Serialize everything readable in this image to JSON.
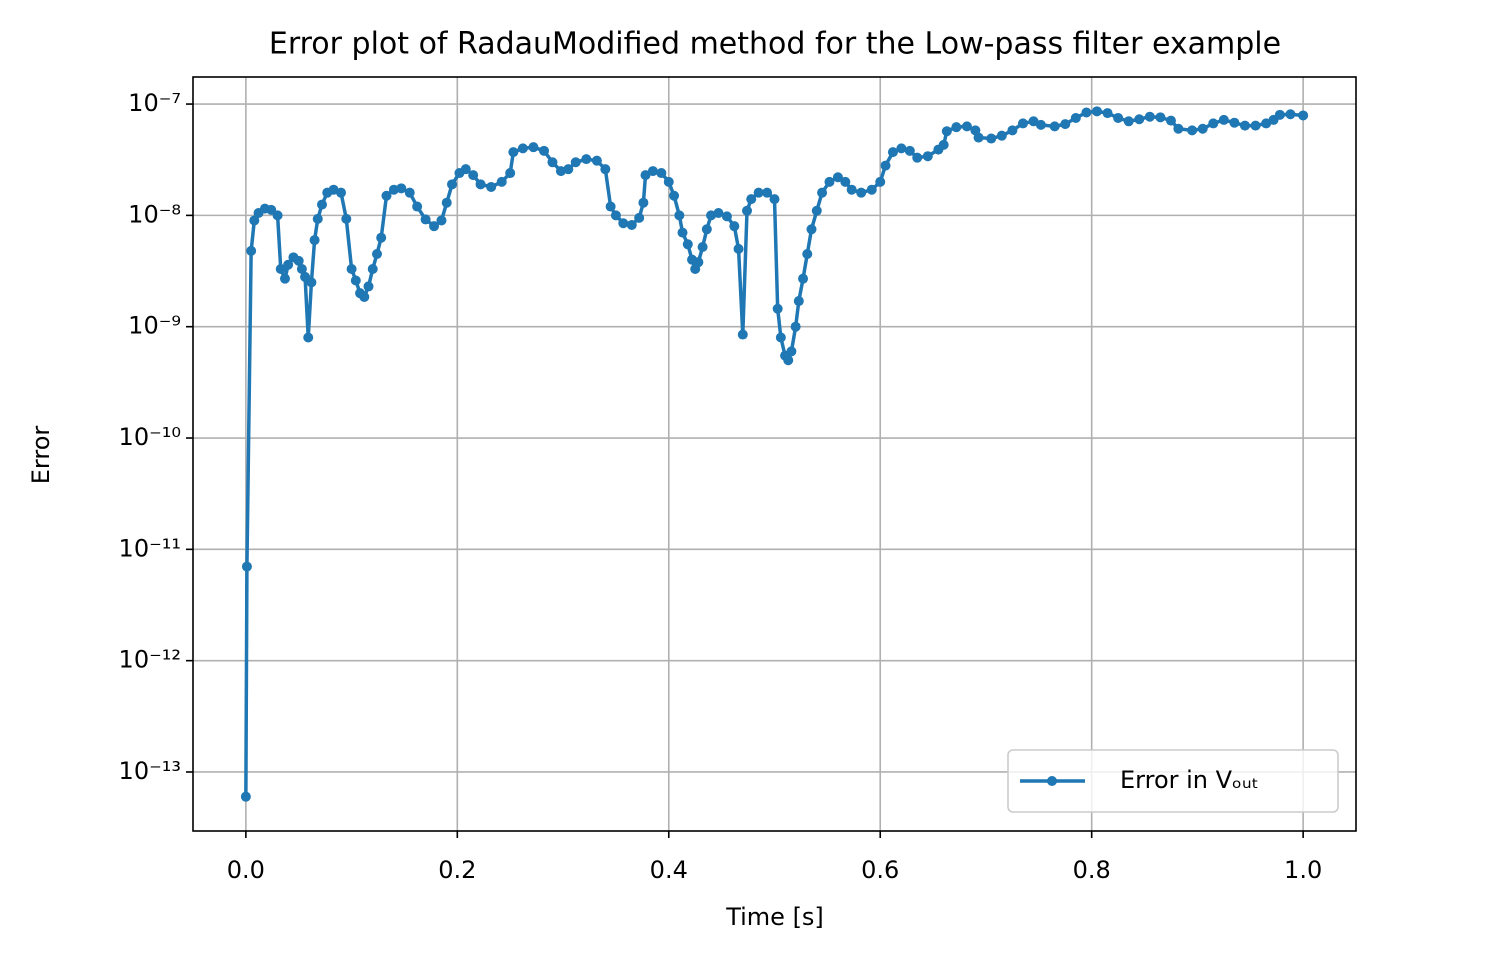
{
  "chart_data": {
    "type": "line",
    "title": "Error plot of RadauModified method for the Low-pass filter example",
    "xlabel": "Time [s]",
    "ylabel": "Error",
    "yscale": "log",
    "grid": true,
    "legend": "lower right",
    "xlim": [
      -0.05,
      1.05
    ],
    "ylim": [
      2.95e-14,
      1.75e-07
    ],
    "xticks": [
      {
        "value": 0,
        "label": "0.0"
      },
      0.2,
      0.4,
      0.6,
      0.8,
      {
        "value": 1,
        "label": "1.0"
      }
    ],
    "yticks": [
      {
        "value": 1e-13,
        "label": "10⁻¹³"
      },
      {
        "value": 1e-12,
        "label": "10⁻¹²"
      },
      {
        "value": 1e-11,
        "label": "10⁻¹¹"
      },
      {
        "value": 1e-10,
        "label": "10⁻¹⁰"
      },
      {
        "value": 1e-09,
        "label": "10⁻⁹"
      },
      {
        "value": 1e-08,
        "label": "10⁻⁸"
      },
      {
        "value": 1e-07,
        "label": "10⁻⁷"
      }
    ],
    "x": [
      0,
      0.001,
      0.005,
      0.008,
      0.012,
      0.018,
      0.024,
      0.03,
      0.033,
      0.037,
      0.04,
      0.045,
      0.05,
      0.053,
      0.056,
      0.059,
      0.062,
      0.065,
      0.068,
      0.072,
      0.077,
      0.083,
      0.09,
      0.095,
      0.1,
      0.104,
      0.108,
      0.112,
      0.116,
      0.12,
      0.124,
      0.128,
      0.133,
      0.14,
      0.147,
      0.155,
      0.162,
      0.17,
      0.178,
      0.185,
      0.19,
      0.195,
      0.202,
      0.208,
      0.215,
      0.222,
      0.232,
      0.242,
      0.25,
      0.253,
      0.262,
      0.272,
      0.282,
      0.29,
      0.298,
      0.305,
      0.312,
      0.322,
      0.332,
      0.34,
      0.345,
      0.35,
      0.357,
      0.365,
      0.372,
      0.376,
      0.378,
      0.385,
      0.393,
      0.4,
      0.405,
      0.41,
      0.413,
      0.418,
      0.422,
      0.425,
      0.428,
      0.432,
      0.436,
      0.44,
      0.447,
      0.455,
      0.462,
      0.466,
      0.47,
      0.474,
      0.478,
      0.485,
      0.493,
      0.5,
      0.503,
      0.506,
      0.51,
      0.513,
      0.516,
      0.52,
      0.523,
      0.527,
      0.531,
      0.535,
      0.54,
      0.545,
      0.552,
      0.56,
      0.567,
      0.573,
      0.582,
      0.592,
      0.6,
      0.605,
      0.612,
      0.62,
      0.628,
      0.635,
      0.645,
      0.655,
      0.66,
      0.663,
      0.672,
      0.682,
      0.69,
      0.693,
      0.705,
      0.715,
      0.725,
      0.735,
      0.745,
      0.752,
      0.765,
      0.775,
      0.785,
      0.795,
      0.805,
      0.815,
      0.825,
      0.835,
      0.845,
      0.855,
      0.865,
      0.875,
      0.882,
      0.895,
      0.905,
      0.915,
      0.925,
      0.935,
      0.945,
      0.955,
      0.965,
      0.972,
      0.978,
      0.988,
      1.0
    ],
    "series": [
      {
        "name": "Error in Vₒᵤₜ",
        "color": "#1f77b4",
        "values": [
          6e-14,
          7e-12,
          4.8e-09,
          9e-09,
          1.05e-08,
          1.15e-08,
          1.12e-08,
          1e-08,
          3.3e-09,
          2.7e-09,
          3.6e-09,
          4.2e-09,
          3.9e-09,
          3.3e-09,
          2.8e-09,
          8e-10,
          2.5e-09,
          6e-09,
          9.3e-09,
          1.25e-08,
          1.6e-08,
          1.7e-08,
          1.6e-08,
          9.3e-09,
          3.3e-09,
          2.6e-09,
          2e-09,
          1.85e-09,
          2.3e-09,
          3.3e-09,
          4.5e-09,
          6.3e-09,
          1.5e-08,
          1.7e-08,
          1.75e-08,
          1.6e-08,
          1.2e-08,
          9.2e-09,
          8e-09,
          9e-09,
          1.3e-08,
          1.9e-08,
          2.4e-08,
          2.6e-08,
          2.3e-08,
          1.9e-08,
          1.8e-08,
          2e-08,
          2.4e-08,
          3.7e-08,
          4e-08,
          4.1e-08,
          3.8e-08,
          3e-08,
          2.5e-08,
          2.6e-08,
          3e-08,
          3.2e-08,
          3.1e-08,
          2.6e-08,
          1.2e-08,
          1e-08,
          8.5e-09,
          8.2e-09,
          9.5e-09,
          1.3e-08,
          2.3e-08,
          2.5e-08,
          2.4e-08,
          2e-08,
          1.5e-08,
          1e-08,
          7e-09,
          5.5e-09,
          4e-09,
          3.3e-09,
          3.8e-09,
          5.2e-09,
          7.5e-09,
          1e-08,
          1.05e-08,
          9.8e-09,
          8e-09,
          5e-09,
          8.5e-10,
          1.1e-08,
          1.4e-08,
          1.6e-08,
          1.6e-08,
          1.4e-08,
          1.45e-09,
          8e-10,
          5.5e-10,
          5e-10,
          6e-10,
          1e-09,
          1.7e-09,
          2.7e-09,
          4.5e-09,
          7.5e-09,
          1.1e-08,
          1.6e-08,
          2e-08,
          2.2e-08,
          2e-08,
          1.7e-08,
          1.6e-08,
          1.7e-08,
          2e-08,
          2.8e-08,
          3.7e-08,
          4e-08,
          3.8e-08,
          3.3e-08,
          3.4e-08,
          3.9e-08,
          4.3e-08,
          5.7e-08,
          6.2e-08,
          6.3e-08,
          5.8e-08,
          5e-08,
          4.9e-08,
          5.2e-08,
          5.8e-08,
          6.7e-08,
          7e-08,
          6.5e-08,
          6.3e-08,
          6.6e-08,
          7.5e-08,
          8.4e-08,
          8.6e-08,
          8.3e-08,
          7.5e-08,
          7e-08,
          7.3e-08,
          7.7e-08,
          7.6e-08,
          7.1e-08,
          6e-08,
          5.8e-08,
          6e-08,
          6.7e-08,
          7.2e-08,
          6.8e-08,
          6.4e-08,
          6.4e-08,
          6.7e-08,
          7.2e-08,
          8e-08,
          8.1e-08,
          7.9e-08
        ]
      }
    ]
  }
}
